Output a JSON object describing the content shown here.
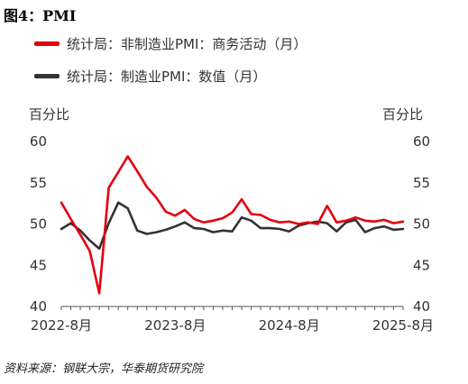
{
  "figure_title": "图4：PMI",
  "legend": [
    {
      "label": "统计局：非制造业PMI：商务活动（月）",
      "color": "#e3000f"
    },
    {
      "label": "统计局：制造业PMI：数值（月）",
      "color": "#333333"
    }
  ],
  "unit_left": "百分比",
  "unit_right": "百分比",
  "source": "资料来源：钢联大宗，华泰期货研究院",
  "chart_data": {
    "type": "line",
    "title": "图4：PMI",
    "x": [
      "2022-08",
      "2022-09",
      "2022-10",
      "2022-11",
      "2022-12",
      "2023-01",
      "2023-02",
      "2023-03",
      "2023-04",
      "2023-05",
      "2023-06",
      "2023-07",
      "2023-08",
      "2023-09",
      "2023-10",
      "2023-11",
      "2023-12",
      "2024-01",
      "2024-02",
      "2024-03",
      "2024-04",
      "2024-05",
      "2024-06",
      "2024-07",
      "2024-08",
      "2024-09",
      "2024-10",
      "2024-11",
      "2024-12",
      "2025-01",
      "2025-02",
      "2025-03",
      "2025-04",
      "2025-05",
      "2025-06",
      "2025-07",
      "2025-08"
    ],
    "x_tick_labels": [
      "2022-8月",
      "2023-8月",
      "2024-8月",
      "2025-8月"
    ],
    "y_ticks": [
      40,
      45,
      50,
      55,
      60
    ],
    "ylim": [
      40,
      60
    ],
    "ylabel_left": "百分比",
    "ylabel_right": "百分比",
    "series": [
      {
        "name": "统计局：非制造业PMI：商务活动（月）",
        "color": "#e3000f",
        "values": [
          52.6,
          50.6,
          48.7,
          46.7,
          41.6,
          54.4,
          56.3,
          58.2,
          56.4,
          54.5,
          53.2,
          51.5,
          51.0,
          51.7,
          50.6,
          50.2,
          50.4,
          50.7,
          51.4,
          53.0,
          51.2,
          51.1,
          50.5,
          50.2,
          50.3,
          50.0,
          50.2,
          50.0,
          52.2,
          50.2,
          50.4,
          50.8,
          50.4,
          50.3,
          50.5,
          50.1,
          50.3
        ]
      },
      {
        "name": "统计局：制造业PMI：数值（月）",
        "color": "#333333",
        "values": [
          49.4,
          50.1,
          49.2,
          48.0,
          47.0,
          50.1,
          52.6,
          51.9,
          49.2,
          48.8,
          49.0,
          49.3,
          49.7,
          50.2,
          49.5,
          49.4,
          49.0,
          49.2,
          49.1,
          50.8,
          50.4,
          49.5,
          49.5,
          49.4,
          49.1,
          49.8,
          50.1,
          50.3,
          50.1,
          49.1,
          50.2,
          50.5,
          49.0,
          49.5,
          49.7,
          49.3,
          49.4
        ]
      }
    ],
    "grid": false
  }
}
